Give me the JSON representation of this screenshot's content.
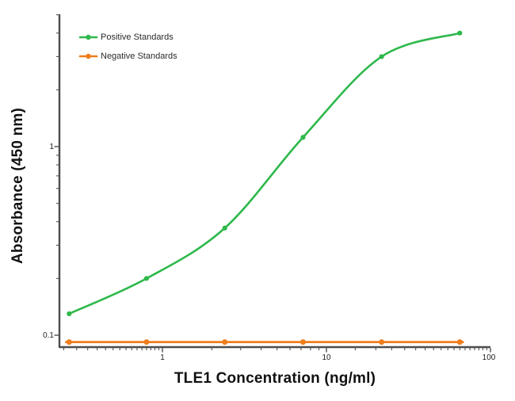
{
  "chart_data": {
    "type": "line",
    "title": "",
    "xlabel": "TLE1 Concentration (ng/ml)",
    "ylabel": "Absorbance (450 nm)",
    "x_scale": "log",
    "y_scale": "log",
    "xlim": [
      0.23,
      100
    ],
    "ylim": [
      0.087,
      5
    ],
    "grid": false,
    "legend_position": "top-left-inside",
    "x_major_ticks": [
      {
        "value": 1,
        "label": "1"
      },
      {
        "value": 10,
        "label": "10"
      },
      {
        "value": 100,
        "label": "100"
      }
    ],
    "y_major_ticks": [
      {
        "value": 1,
        "label": "1"
      },
      {
        "value": 0.1,
        "label": "0.1"
      }
    ],
    "x_minor_ticks": [
      0.25,
      0.3,
      0.35,
      0.4,
      0.45,
      0.5,
      0.55,
      0.6,
      0.65,
      0.7,
      0.75,
      0.8,
      0.85,
      0.9,
      0.95,
      2,
      3,
      4,
      5,
      6,
      7,
      8,
      9,
      15,
      20,
      25,
      30,
      35,
      40,
      45,
      50,
      55,
      60,
      65,
      70,
      75,
      80,
      85,
      90,
      95
    ],
    "y_minor_ticks": [
      0.2,
      0.3,
      0.4,
      0.5,
      0.6,
      0.7,
      0.8,
      0.9,
      2,
      3,
      4,
      5
    ],
    "x": [
      0.27,
      0.8,
      2.4,
      7.2,
      21.7,
      65
    ],
    "series": [
      {
        "name": "Positive Standards",
        "color": "#2eb84b",
        "style": "smooth-sigmoid-curve",
        "values": [
          0.13,
          0.2,
          0.37,
          1.12,
          3.0,
          4.0
        ]
      },
      {
        "name": "Negative Standards",
        "color": "#ef7d1b",
        "style": "flat-line",
        "values": [
          0.092,
          0.092,
          0.092,
          0.092,
          0.092,
          0.092
        ]
      }
    ],
    "colors": {
      "axis": "#4d4d4d",
      "tick_text": "#222222",
      "title_text": "#111111"
    }
  }
}
